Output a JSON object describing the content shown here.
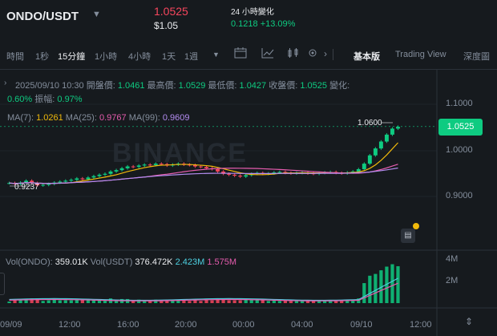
{
  "header": {
    "pair": "ONDO/USDT",
    "price": "1.0525",
    "price_usd": "$1.05",
    "change_label": "24 小時變化",
    "change_value": "0.1218 +13.09%"
  },
  "toolbar": {
    "time": "時間",
    "1s": "1秒",
    "15m": "15分鐘",
    "1h": "1小時",
    "4h": "4小時",
    "1d": "1天",
    "1w": "1週",
    "basic": "基本版",
    "tradingview": "Trading View",
    "depth": "深度圖"
  },
  "info": {
    "date": "2025/09/10 10:30",
    "open_label": "開盤價:",
    "open": "1.0461",
    "high_label": "最高價:",
    "high": "1.0529",
    "low_label": "最低價:",
    "low": "1.0427",
    "close_label": "收盤價:",
    "close": "1.0525",
    "change_label": "變化:",
    "change": "0.60%",
    "amp_label": "振幅:",
    "amp": "0.97%"
  },
  "ma": {
    "ma7_label": "MA(7):",
    "ma7": "1.0261",
    "ma25_label": "MA(25):",
    "ma25": "0.9767",
    "ma99_label": "MA(99):",
    "ma99": "0.9609"
  },
  "vol": {
    "vol_label": "Vol(ONDO):",
    "vol": "359.01K",
    "volu_label": "Vol(USDT)",
    "volu": "376.472K",
    "ma1": "2.423M",
    "ma2": "1.575M"
  },
  "axis": {
    "y": [
      "1.1000",
      "1.0000",
      "0.9000"
    ],
    "current": "1.0525",
    "vol_y": [
      "4M",
      "2M"
    ],
    "x": [
      "09/09",
      "12:00",
      "16:00",
      "20:00",
      "00:00",
      "04:00",
      "09/10",
      "12:00"
    ]
  },
  "annotations": {
    "high": "1.0600",
    "low": "0.9237"
  },
  "watermark": "BINANCE",
  "colors": {
    "up": "#0ecb81",
    "down": "#f6465d",
    "ma7": "#f0b90b",
    "ma25": "#e55cae",
    "ma99": "#b38cf0"
  },
  "chart_data": {
    "type": "line",
    "candles_close": [
      0.93,
      0.928,
      0.931,
      0.935,
      0.93,
      0.925,
      0.926,
      0.928,
      0.931,
      0.933,
      0.935,
      0.937,
      0.94,
      0.938,
      0.942,
      0.945,
      0.948,
      0.95,
      0.955,
      0.958,
      0.962,
      0.966,
      0.965,
      0.968,
      0.97,
      0.969,
      0.972,
      0.971,
      0.968,
      0.97,
      0.972,
      0.97,
      0.969,
      0.966,
      0.965,
      0.962,
      0.96,
      0.955,
      0.95,
      0.948,
      0.946,
      0.944,
      0.947,
      0.95,
      0.952,
      0.95,
      0.951,
      0.953,
      0.954,
      0.952,
      0.951,
      0.952,
      0.953,
      0.951,
      0.95,
      0.952,
      0.953,
      0.954,
      0.952,
      0.951,
      0.953,
      0.955,
      0.96,
      0.972,
      0.99,
      1.005,
      1.02,
      1.035,
      1.048,
      1.052
    ],
    "ylim": [
      0.86,
      1.13
    ],
    "vol_ylim": [
      0,
      4.3
    ]
  }
}
